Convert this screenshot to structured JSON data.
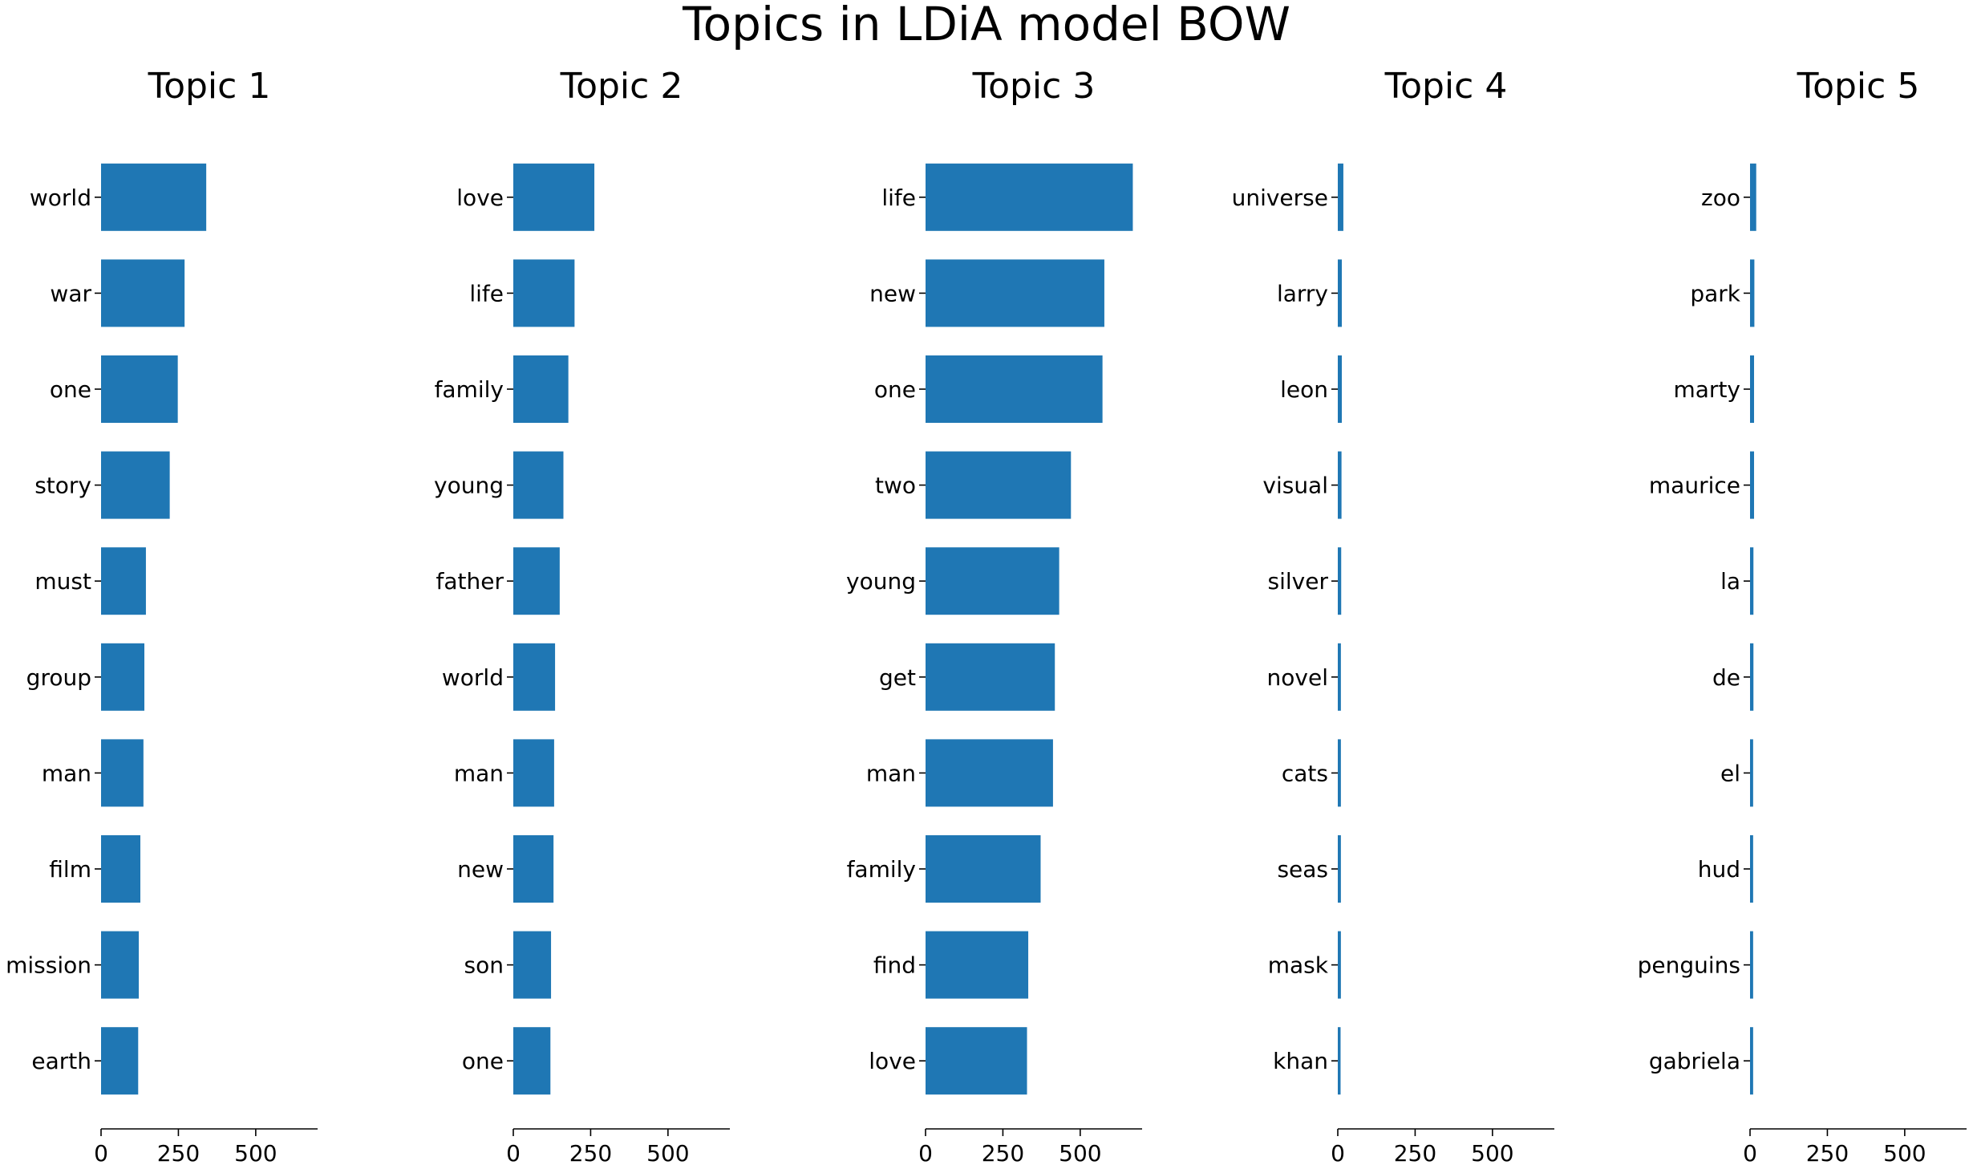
{
  "chart_data": {
    "type": "bar",
    "orientation": "horizontal",
    "title": "Topics in LDiA model BOW",
    "xlim": [
      0,
      700
    ],
    "xticks": [
      "0",
      "250",
      "500"
    ],
    "grid": false,
    "legend": "none",
    "color": "#1f77b4",
    "subplots": [
      {
        "title": "Topic 1",
        "categories": [
          "world",
          "war",
          "one",
          "story",
          "must",
          "group",
          "man",
          "film",
          "mission",
          "earth"
        ],
        "values": [
          340,
          270,
          248,
          222,
          145,
          140,
          137,
          127,
          122,
          120
        ]
      },
      {
        "title": "Topic 2",
        "categories": [
          "love",
          "life",
          "family",
          "young",
          "father",
          "world",
          "man",
          "new",
          "son",
          "one"
        ],
        "values": [
          262,
          198,
          178,
          162,
          150,
          135,
          132,
          130,
          122,
          120
        ]
      },
      {
        "title": "Topic 3",
        "categories": [
          "life",
          "new",
          "one",
          "two",
          "young",
          "get",
          "man",
          "family",
          "find",
          "love"
        ],
        "values": [
          670,
          578,
          572,
          470,
          432,
          418,
          412,
          372,
          332,
          328
        ]
      },
      {
        "title": "Topic 4",
        "categories": [
          "universe",
          "larry",
          "leon",
          "visual",
          "silver",
          "novel",
          "cats",
          "seas",
          "mask",
          "khan"
        ],
        "values": [
          18,
          13,
          13,
          12,
          11,
          10,
          10,
          10,
          10,
          9
        ]
      },
      {
        "title": "Topic 5",
        "categories": [
          "zoo",
          "park",
          "marty",
          "maurice",
          "la",
          "de",
          "el",
          "hud",
          "penguins",
          "gabriela"
        ],
        "values": [
          20,
          14,
          13,
          13,
          11,
          11,
          10,
          10,
          10,
          10
        ]
      }
    ]
  }
}
